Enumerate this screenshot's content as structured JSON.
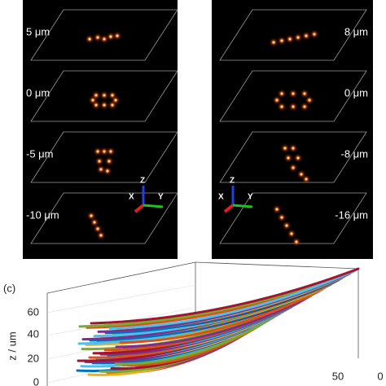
{
  "panels": [
    {
      "depth_labels": [
        "5 μm",
        "0 μm",
        "-5 μm",
        "-10 μm"
      ],
      "axis_labels": [
        "Z",
        "X",
        "Y"
      ]
    },
    {
      "depth_labels": [
        "8 μm",
        "0 μm",
        "-8 μm",
        "-16 μm"
      ],
      "axis_labels": [
        "Z",
        "X",
        "Y"
      ]
    }
  ],
  "plot": {
    "panel_label": "(c)",
    "z_axis_title": "z / um",
    "z_ticks": [
      "0",
      "20",
      "40",
      "60"
    ],
    "x_ticks": [
      "50",
      "0"
    ]
  }
}
